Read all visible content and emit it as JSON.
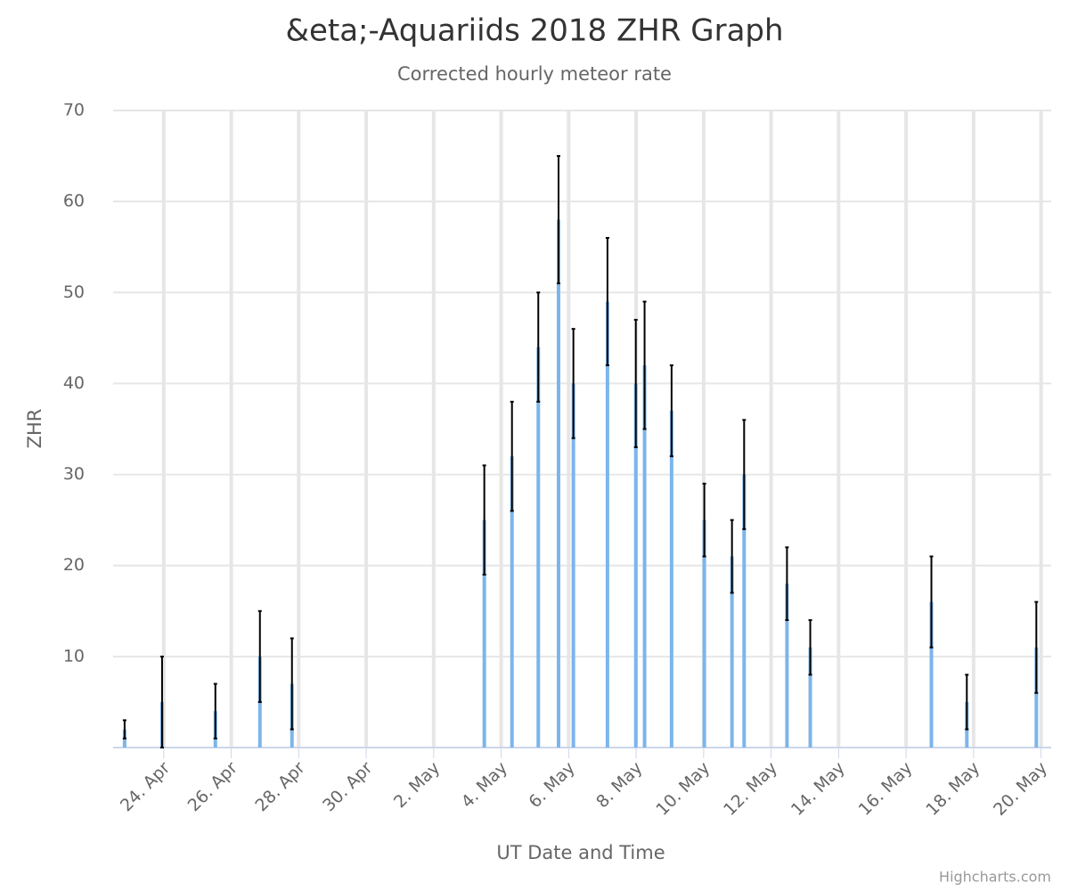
{
  "chart_data": {
    "type": "bar",
    "title": "&eta;-Aquariids 2018 ZHR Graph",
    "subtitle": "Corrected hourly meteor rate",
    "x_label": "UT Date and Time",
    "y_label": "ZHR",
    "credits": "Highcharts.com",
    "xlim": [
      22.5,
      50.3
    ],
    "xticks": [
      {
        "value": 24,
        "label": "24. Apr"
      },
      {
        "value": 26,
        "label": "26. Apr"
      },
      {
        "value": 28,
        "label": "28. Apr"
      },
      {
        "value": 30,
        "label": "30. Apr"
      },
      {
        "value": 32,
        "label": "2. May"
      },
      {
        "value": 34,
        "label": "4. May"
      },
      {
        "value": 36,
        "label": "6. May"
      },
      {
        "value": 38,
        "label": "8. May"
      },
      {
        "value": 40,
        "label": "10. May"
      },
      {
        "value": 42,
        "label": "12. May"
      },
      {
        "value": 44,
        "label": "14. May"
      },
      {
        "value": 46,
        "label": "16. May"
      },
      {
        "value": 48,
        "label": "18. May"
      },
      {
        "value": 50,
        "label": "20. May"
      }
    ],
    "ylim": [
      0,
      70
    ],
    "yticks": [
      10,
      20,
      30,
      40,
      50,
      60,
      70
    ],
    "grid": true,
    "series": [
      {
        "color": "#7cb5ec",
        "error_color": "#000000",
        "x": [
          22.84,
          23.95,
          25.53,
          26.85,
          27.8,
          33.5,
          34.32,
          35.1,
          35.7,
          36.14,
          37.15,
          37.99,
          38.25,
          39.05,
          40.02,
          40.84,
          41.2,
          42.47,
          43.16,
          46.75,
          47.8,
          49.86
        ],
        "values": [
          2,
          5,
          4,
          10,
          7,
          25,
          32,
          44,
          58,
          40,
          49,
          40,
          42,
          37,
          25,
          21,
          30,
          18,
          11,
          16,
          5,
          11
        ],
        "error_low": [
          1,
          0,
          1,
          5,
          2,
          19,
          26,
          38,
          51,
          34,
          42,
          33,
          35,
          32,
          21,
          17,
          24,
          14,
          8,
          11,
          2,
          6
        ],
        "error_high": [
          3,
          10,
          7,
          15,
          12,
          31,
          38,
          50,
          65,
          46,
          56,
          47,
          49,
          42,
          29,
          25,
          36,
          22,
          14,
          21,
          8,
          16
        ]
      }
    ]
  }
}
